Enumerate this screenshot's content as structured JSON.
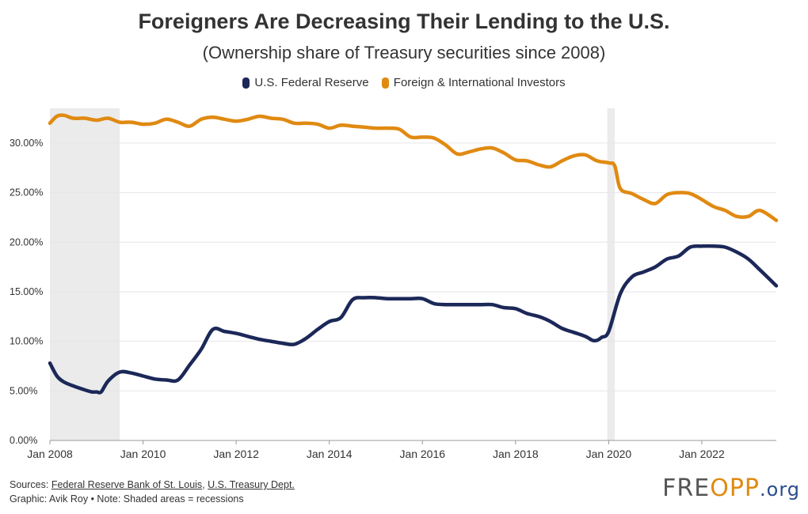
{
  "colors": {
    "fed": "#1b2858",
    "foreign": "#e08a12",
    "recession": "#ebebeb",
    "grid": "#e6e6e6",
    "logo_accent": "#e08a12",
    "logo_blue": "#2a4d8f"
  },
  "header": {
    "title": "Foreigners Are Decreasing Their Lending to the U.S.",
    "subtitle": "(Ownership share of Treasury securities since 2008)"
  },
  "chart_data": {
    "type": "line",
    "title": "Foreigners Are Decreasing Their Lending to the U.S.",
    "subtitle": "(Ownership share of Treasury securities since 2008)",
    "xlabel": "",
    "ylabel": "",
    "grid": true,
    "legend_position": "top-center",
    "xlim": [
      2008.0,
      2023.6
    ],
    "ylim": [
      0,
      33.5
    ],
    "yticks": [
      0,
      5,
      10,
      15,
      20,
      25,
      30
    ],
    "ytick_labels": [
      "0.00%",
      "5.00%",
      "10.00%",
      "15.00%",
      "20.00%",
      "25.00%",
      "30.00%"
    ],
    "xticks": [
      2008,
      2010,
      2012,
      2014,
      2016,
      2018,
      2020,
      2022
    ],
    "xtick_labels": [
      "Jan 2008",
      "Jan 2010",
      "Jan 2012",
      "Jan 2014",
      "Jan 2016",
      "Jan 2018",
      "Jan 2020",
      "Jan 2022"
    ],
    "recessions": [
      [
        2008.0,
        2009.5
      ],
      [
        2019.97,
        2020.13
      ]
    ],
    "series": [
      {
        "name": "U.S. Federal Reserve",
        "color": "#1b2858",
        "x": [
          2008.0,
          2008.15,
          2008.3,
          2008.5,
          2008.75,
          2008.9,
          2009.0,
          2009.1,
          2009.25,
          2009.5,
          2009.75,
          2010.0,
          2010.25,
          2010.5,
          2010.75,
          2011.0,
          2011.25,
          2011.5,
          2011.75,
          2012.0,
          2012.25,
          2012.5,
          2012.75,
          2013.0,
          2013.25,
          2013.5,
          2013.75,
          2014.0,
          2014.25,
          2014.5,
          2014.75,
          2015.0,
          2015.25,
          2015.5,
          2015.75,
          2016.0,
          2016.25,
          2016.5,
          2016.75,
          2017.0,
          2017.25,
          2017.5,
          2017.75,
          2018.0,
          2018.25,
          2018.5,
          2018.75,
          2019.0,
          2019.25,
          2019.5,
          2019.65,
          2019.75,
          2019.85,
          2020.0,
          2020.25,
          2020.5,
          2020.75,
          2021.0,
          2021.25,
          2021.5,
          2021.75,
          2022.0,
          2022.25,
          2022.5,
          2022.75,
          2023.0,
          2023.25,
          2023.6
        ],
        "values": [
          7.8,
          6.5,
          5.9,
          5.5,
          5.1,
          4.9,
          4.9,
          4.9,
          6.0,
          6.9,
          6.8,
          6.5,
          6.2,
          6.1,
          6.1,
          7.6,
          9.2,
          11.2,
          11.0,
          10.8,
          10.5,
          10.2,
          10.0,
          9.8,
          9.7,
          10.3,
          11.2,
          12.0,
          12.4,
          14.2,
          14.4,
          14.4,
          14.3,
          14.3,
          14.3,
          14.3,
          13.8,
          13.7,
          13.7,
          13.7,
          13.7,
          13.7,
          13.4,
          13.3,
          12.8,
          12.5,
          12.0,
          11.3,
          10.9,
          10.5,
          10.1,
          10.1,
          10.4,
          11.0,
          14.8,
          16.5,
          17.0,
          17.5,
          18.3,
          18.6,
          19.5,
          19.6,
          19.6,
          19.5,
          19.0,
          18.3,
          17.2,
          15.6
        ]
      },
      {
        "name": "Foreign & International Investors",
        "color": "#e08a12",
        "x": [
          2008.0,
          2008.15,
          2008.3,
          2008.5,
          2008.75,
          2009.0,
          2009.25,
          2009.5,
          2009.75,
          2010.0,
          2010.25,
          2010.5,
          2010.75,
          2011.0,
          2011.25,
          2011.5,
          2011.75,
          2012.0,
          2012.25,
          2012.5,
          2012.75,
          2013.0,
          2013.25,
          2013.5,
          2013.75,
          2014.0,
          2014.25,
          2014.5,
          2014.75,
          2015.0,
          2015.25,
          2015.5,
          2015.75,
          2016.0,
          2016.25,
          2016.5,
          2016.75,
          2017.0,
          2017.25,
          2017.5,
          2017.75,
          2018.0,
          2018.25,
          2018.5,
          2018.75,
          2019.0,
          2019.25,
          2019.5,
          2019.75,
          2020.0,
          2020.13,
          2020.25,
          2020.5,
          2020.75,
          2021.0,
          2021.25,
          2021.5,
          2021.75,
          2022.0,
          2022.25,
          2022.5,
          2022.75,
          2023.0,
          2023.25,
          2023.6
        ],
        "values": [
          32.0,
          32.7,
          32.8,
          32.5,
          32.5,
          32.3,
          32.5,
          32.1,
          32.1,
          31.9,
          32.0,
          32.4,
          32.1,
          31.7,
          32.4,
          32.6,
          32.4,
          32.2,
          32.4,
          32.7,
          32.5,
          32.4,
          32.0,
          32.0,
          31.9,
          31.5,
          31.8,
          31.7,
          31.6,
          31.5,
          31.5,
          31.4,
          30.6,
          30.6,
          30.5,
          29.8,
          28.9,
          29.1,
          29.4,
          29.5,
          29.0,
          28.3,
          28.2,
          27.8,
          27.6,
          28.2,
          28.7,
          28.8,
          28.2,
          28.0,
          27.7,
          25.4,
          24.9,
          24.3,
          23.9,
          24.8,
          25.0,
          24.9,
          24.3,
          23.6,
          23.2,
          22.6,
          22.6,
          23.2,
          22.2
        ]
      }
    ]
  },
  "footer": {
    "sources_prefix": "Sources: ",
    "source1": "Federal Reserve Bank of St. Louis",
    "separator": ", ",
    "source2": "U.S. Treasury Dept.",
    "credit": "Graphic: Avik Roy • Note: Shaded areas = recessions"
  },
  "logo": {
    "brand_start": "FRE",
    "brand_mid": "OPP",
    "brand_end": ".org"
  }
}
